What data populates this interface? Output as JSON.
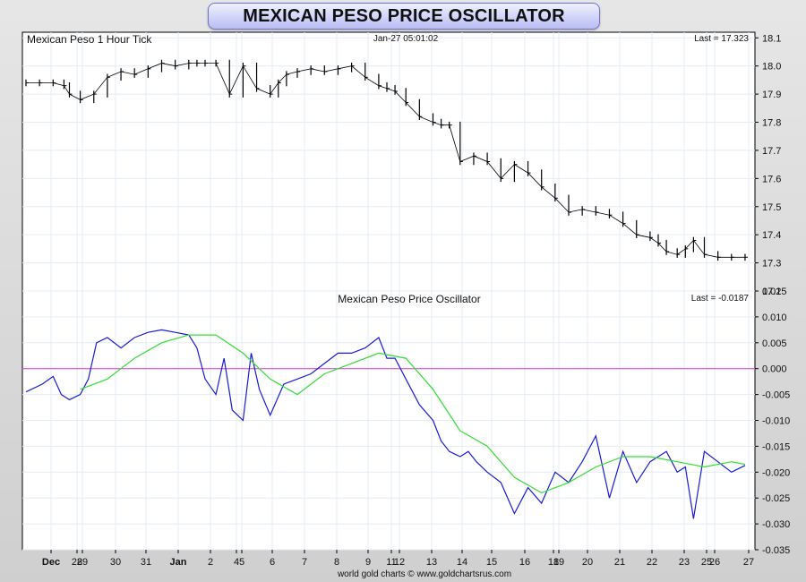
{
  "title": "MEXICAN PESO PRICE OSCILLATOR",
  "footer": "world gold charts © www.goldchartsrus.com",
  "x_tick_labels": [
    "Dec",
    "28",
    "29",
    "30",
    "31",
    "Jan",
    "2",
    "4",
    "5",
    "6",
    "7",
    "8",
    "9",
    "11",
    "12",
    "13",
    "14",
    "15",
    "16",
    "18",
    "19",
    "20",
    "21",
    "22",
    "23",
    "25",
    "26",
    "27"
  ],
  "chart_data": [
    {
      "type": "line",
      "style": "high-low bars",
      "title": "Mexican Peso 1 Hour Tick",
      "timestamp": "Jan-27  05:01:02",
      "last_label": "Last = 17.323",
      "ylim": [
        17.2,
        18.12
      ],
      "y_ticks": [
        "18.1",
        "18.0",
        "17.9",
        "17.8",
        "17.7",
        "17.6",
        "17.5",
        "17.4",
        "17.3",
        "17.2"
      ],
      "grid": true,
      "series": [
        {
          "x": [
            0,
            0.5,
            1,
            1.4,
            1.6,
            2,
            2.5,
            3,
            3.5,
            4,
            4.5,
            5,
            5.5,
            6,
            6.3,
            6.6,
            7,
            7.5,
            8,
            8.5,
            9,
            9.3,
            9.6,
            10,
            10.5,
            11,
            11.5,
            12,
            12.5,
            13,
            13.3,
            13.6,
            14,
            14.5,
            15,
            15.3,
            15.6,
            16,
            16.5,
            17,
            17.5,
            18,
            18.5,
            19,
            19.5,
            20,
            20.5,
            21,
            21.5,
            22,
            22.5,
            23,
            23.3,
            23.6,
            24,
            24.3,
            24.6,
            25,
            25.5,
            26,
            26.5
          ],
          "values": [
            17.94,
            17.94,
            17.94,
            17.93,
            17.9,
            17.88,
            17.9,
            17.96,
            17.98,
            17.97,
            17.99,
            18.01,
            18.0,
            18.01,
            18.01,
            18.01,
            18.01,
            17.9,
            18.0,
            17.92,
            17.9,
            17.94,
            17.97,
            17.98,
            17.99,
            17.98,
            17.99,
            18.0,
            17.96,
            17.93,
            17.92,
            17.91,
            17.87,
            17.82,
            17.8,
            17.79,
            17.79,
            17.66,
            17.68,
            17.66,
            17.6,
            17.65,
            17.62,
            17.57,
            17.53,
            17.48,
            17.49,
            17.48,
            17.47,
            17.44,
            17.4,
            17.39,
            17.37,
            17.34,
            17.33,
            17.35,
            17.38,
            17.33,
            17.32,
            17.32,
            17.32
          ]
        }
      ]
    },
    {
      "type": "line",
      "title": "Mexican Peso Price Oscillator",
      "last_label": "Last = -0.0187",
      "ylim": [
        -0.035,
        0.015
      ],
      "y_ticks": [
        "0.015",
        "0.010",
        "0.005",
        "0.000",
        "-0.005",
        "-0.010",
        "-0.015",
        "-0.020",
        "-0.025",
        "-0.030",
        "-0.035"
      ],
      "grid": true,
      "zero_line_color": "#d63bd0",
      "series": [
        {
          "color": "#1a1ad6",
          "x": [
            0,
            0.6,
            1,
            1.3,
            1.6,
            2,
            2.3,
            2.6,
            3,
            3.5,
            4,
            4.5,
            5,
            5.5,
            6,
            6.3,
            6.6,
            7,
            7.3,
            7.6,
            8,
            8.3,
            8.6,
            9,
            9.5,
            10,
            10.5,
            11,
            11.5,
            12,
            12.5,
            13,
            13.3,
            13.6,
            14,
            14.5,
            15,
            15.3,
            15.6,
            16,
            16.3,
            16.6,
            17,
            17.5,
            18,
            18.5,
            19,
            19.5,
            20,
            20.5,
            21,
            21.5,
            22,
            22.5,
            23,
            23.3,
            23.6,
            24,
            24.3,
            24.6,
            25,
            25.5,
            26,
            26.5
          ],
          "values": [
            -0.0045,
            -0.003,
            -0.0015,
            -0.005,
            -0.006,
            -0.005,
            -0.002,
            0.005,
            0.006,
            0.004,
            0.006,
            0.007,
            0.0075,
            0.007,
            0.0065,
            0.004,
            -0.002,
            -0.005,
            0.002,
            -0.008,
            -0.01,
            0.003,
            -0.004,
            -0.009,
            -0.003,
            -0.002,
            -0.001,
            0.001,
            0.003,
            0.003,
            0.004,
            0.006,
            0.002,
            0.002,
            -0.002,
            -0.007,
            -0.01,
            -0.014,
            -0.016,
            -0.017,
            -0.016,
            -0.018,
            -0.02,
            -0.022,
            -0.028,
            -0.023,
            -0.026,
            -0.02,
            -0.022,
            -0.018,
            -0.013,
            -0.025,
            -0.016,
            -0.022,
            -0.018,
            -0.017,
            -0.016,
            -0.02,
            -0.019,
            -0.029,
            -0.016,
            -0.018,
            -0.02,
            -0.0187
          ]
        },
        {
          "color": "#33dd33",
          "x": [
            2,
            3,
            4,
            5,
            6,
            7,
            8,
            9,
            10,
            11,
            12,
            13,
            14,
            15,
            16,
            17,
            18,
            19,
            20,
            21,
            22,
            23,
            24,
            25,
            26,
            26.5
          ],
          "values": [
            -0.004,
            -0.002,
            0.002,
            0.005,
            0.0065,
            0.0065,
            0.003,
            -0.002,
            -0.005,
            -0.001,
            0.001,
            0.003,
            0.002,
            -0.004,
            -0.012,
            -0.015,
            -0.021,
            -0.024,
            -0.022,
            -0.019,
            -0.017,
            -0.017,
            -0.018,
            -0.019,
            -0.018,
            -0.0185
          ]
        }
      ]
    }
  ]
}
